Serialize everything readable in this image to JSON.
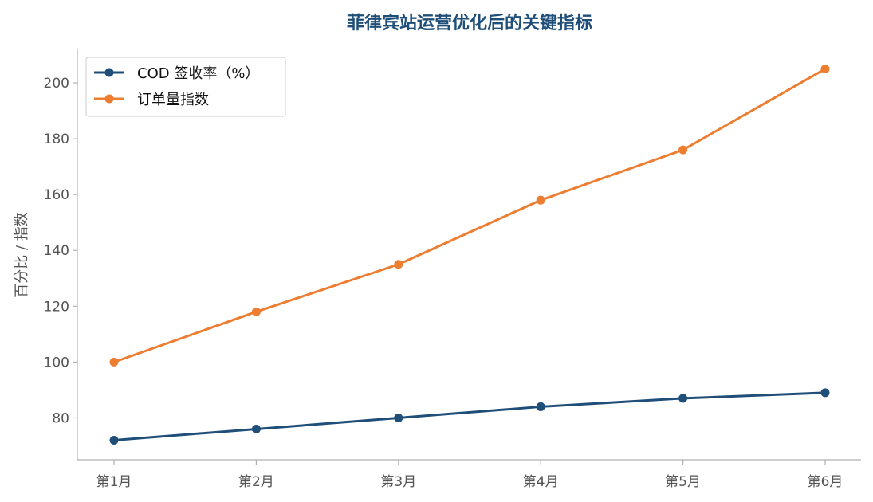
{
  "chart_data": {
    "type": "line",
    "title": "菲律宾站运营优化后的关键指标",
    "xlabel": "",
    "ylabel": "百分比 / 指数",
    "categories": [
      "第1月",
      "第2月",
      "第3月",
      "第4月",
      "第5月",
      "第6月"
    ],
    "ylim": [
      65,
      212
    ],
    "yticks": [
      80,
      100,
      120,
      140,
      160,
      180,
      200
    ],
    "grid": false,
    "legend_position": "top-left",
    "series": [
      {
        "name": "COD 签收率（%）",
        "color": "#1f4e79",
        "values": [
          72,
          76,
          80,
          84,
          87,
          89
        ]
      },
      {
        "name": "订单量指数",
        "color": "#ed7d31",
        "values": [
          100,
          118,
          135,
          158,
          176,
          205
        ]
      }
    ]
  }
}
